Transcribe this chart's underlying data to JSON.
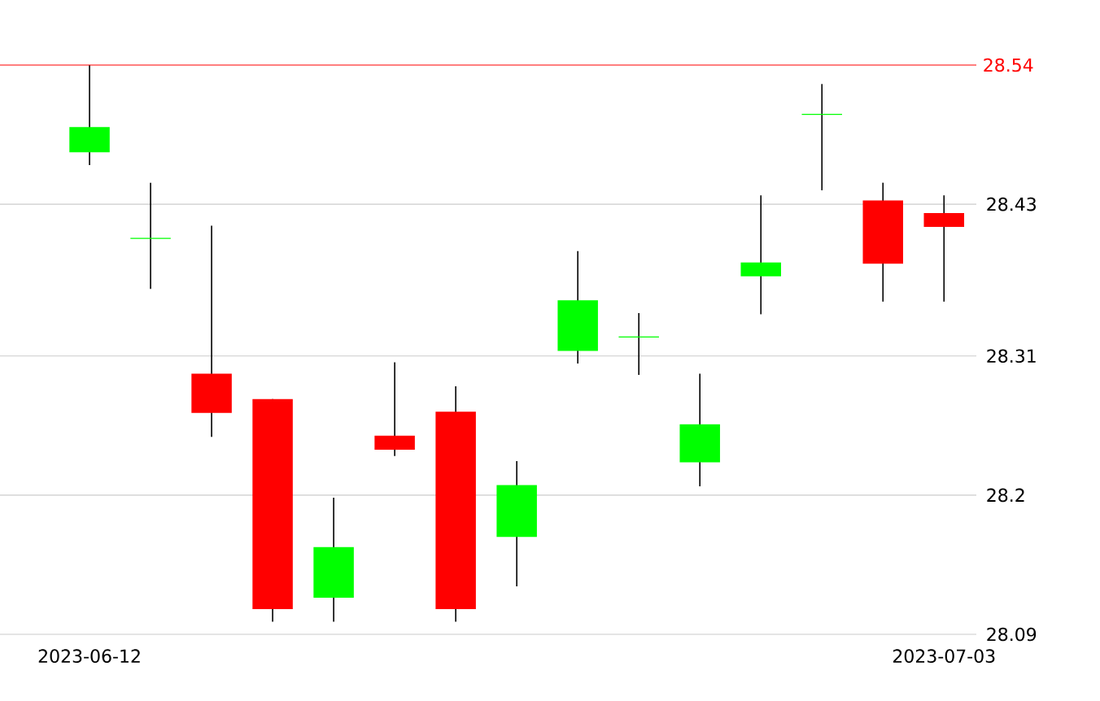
{
  "chart_data": {
    "type": "candlestick",
    "categories": [
      "2023-06-12",
      null,
      null,
      null,
      null,
      null,
      null,
      null,
      null,
      null,
      null,
      null,
      null,
      null,
      "2023-07-03"
    ],
    "ohlc": [
      [
        28.471,
        28.54,
        28.461,
        28.491
      ],
      [
        28.403,
        28.447,
        28.363,
        28.403
      ],
      [
        28.296,
        28.413,
        28.246,
        28.265
      ],
      [
        28.276,
        28.276,
        28.1,
        28.11
      ],
      [
        28.119,
        28.198,
        28.1,
        28.159
      ],
      [
        28.247,
        28.305,
        28.231,
        28.236
      ],
      [
        28.266,
        28.286,
        28.1,
        28.11
      ],
      [
        28.167,
        28.227,
        28.128,
        28.208
      ],
      [
        28.314,
        28.393,
        28.304,
        28.354
      ],
      [
        28.325,
        28.344,
        28.295,
        28.325
      ],
      [
        28.226,
        28.296,
        28.207,
        28.256
      ],
      [
        28.373,
        28.437,
        28.343,
        28.384
      ],
      [
        28.501,
        28.525,
        28.441,
        28.501
      ],
      [
        28.433,
        28.447,
        28.353,
        28.383
      ],
      [
        28.423,
        28.437,
        28.353,
        28.412
      ]
    ],
    "colors": [
      "#00ff00",
      "#00ff00",
      "#ff0000",
      "#ff0000",
      "#00ff00",
      "#ff0000",
      "#ff0000",
      "#00ff00",
      "#00ff00",
      "#00ff00",
      "#00ff00",
      "#00ff00",
      "#00ff00",
      "#ff0000",
      "#ff0000"
    ],
    "ylim": [
      28.09,
      28.54
    ],
    "yticks": [
      28.09,
      28.2,
      28.31,
      28.43
    ],
    "grid": "y",
    "ref_lines": [
      {
        "axis": "y",
        "value": 28.54,
        "label": "28.54",
        "color": "#ff0000"
      }
    ]
  }
}
